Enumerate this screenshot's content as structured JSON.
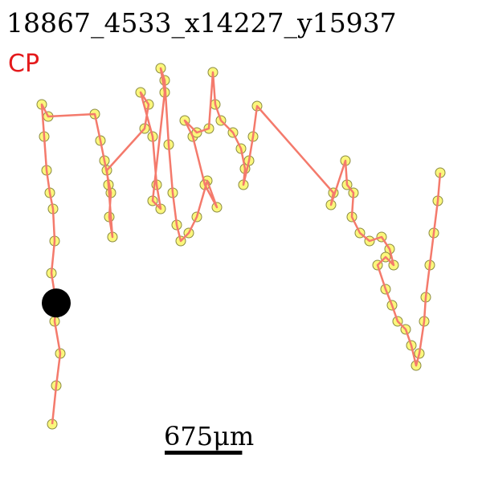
{
  "chart_data": {
    "type": "trajectory",
    "title": "18867_4533_x14227_y15937",
    "subtitle": "CP",
    "x": [
      455,
      490,
      525,
      476,
      490,
      448,
      476,
      462,
      434,
      406,
      385,
      364,
      420,
      826,
      875,
      910,
      966,
      952,
      980,
      945,
      931,
      1260,
      1295,
      1225,
      1330,
      1365,
      1400,
      1330,
      1435,
      1400,
      1435,
      1470,
      1505,
      1540,
      1575,
      1645,
      1715,
      1806,
      1890,
      1785,
      1680,
      1610,
      1715,
      1820,
      1855,
      1876,
      1925,
      2030,
      2100,
      2135,
      2121,
      2170,
      2205,
      2240,
      2905,
      2884,
      3010,
      3024,
      3080,
      3066,
      3136,
      3220,
      3325,
      3395,
      3430,
      3360,
      3290,
      3360,
      3416,
      3465,
      3535,
      3584,
      3626,
      3654,
      3696,
      3710,
      3745,
      3780,
      3815,
      3836
    ],
    "y": [
      3696,
      3360,
      3080,
      2800,
      2646,
      2380,
      2100,
      1820,
      1680,
      1484,
      1190,
      910,
      1015,
      994,
      1225,
      1400,
      1680,
      1890,
      2065,
      1610,
      1484,
      1120,
      910,
      805,
      1190,
      1610,
      1820,
      1750,
      805,
      595,
      700,
      1260,
      1680,
      1960,
      2100,
      2030,
      1890,
      1575,
      1806,
      1610,
      1190,
      1050,
      1155,
      1120,
      630,
      910,
      1050,
      1155,
      1295,
      1470,
      1610,
      1400,
      1190,
      924,
      1680,
      1785,
      1400,
      1610,
      1680,
      1890,
      2030,
      2100,
      2065,
      2170,
      2310,
      2240,
      2310,
      2520,
      2660,
      2800,
      2870,
      3010,
      3185,
      3080,
      2800,
      2590,
      2310,
      2030,
      1750,
      1505
    ],
    "xlim": [
      0,
      4200
    ],
    "ylim": [
      0,
      4200
    ],
    "line_color": "#f47a6c",
    "marker_color": "#fbf77c",
    "current": {
      "x": 490,
      "y": 2640
    },
    "current_color": "#000000",
    "scale_bar": {
      "value": 675,
      "label": "675μm"
    }
  }
}
